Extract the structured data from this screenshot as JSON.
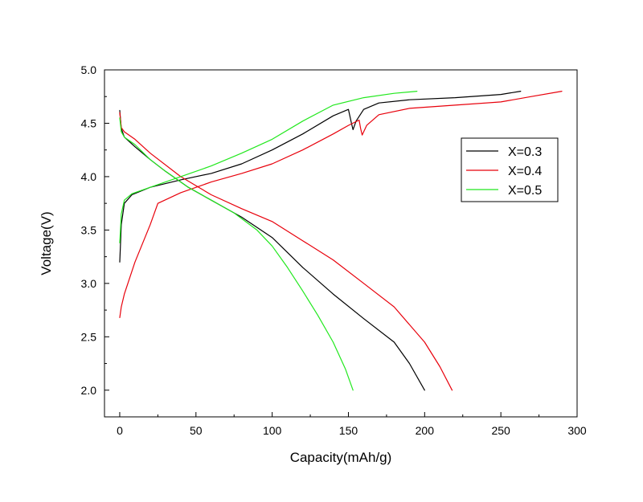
{
  "chart_data": {
    "type": "line",
    "title": "",
    "xlabel": "Capacity(mAh/g)",
    "ylabel": "Voltage(V)",
    "xlim": [
      -10,
      300
    ],
    "ylim": [
      1.75,
      5.0
    ],
    "x_ticks": [
      0,
      50,
      100,
      150,
      200,
      250,
      300
    ],
    "y_ticks": [
      2.0,
      2.5,
      3.0,
      3.5,
      4.0,
      4.5,
      5.0
    ],
    "x_tick_labels": [
      "0",
      "50",
      "100",
      "150",
      "200",
      "250",
      "300"
    ],
    "y_tick_labels": [
      "2.0",
      "2.5",
      "3.0",
      "3.5",
      "4.0",
      "4.5",
      "5.0"
    ],
    "grid": false,
    "legend_position": "right",
    "series": [
      {
        "name": "X=0.3",
        "color": "#000000",
        "charge": [
          [
            0,
            3.2
          ],
          [
            1,
            3.55
          ],
          [
            3,
            3.75
          ],
          [
            8,
            3.83
          ],
          [
            20,
            3.9
          ],
          [
            40,
            3.97
          ],
          [
            60,
            4.03
          ],
          [
            80,
            4.12
          ],
          [
            100,
            4.25
          ],
          [
            120,
            4.4
          ],
          [
            140,
            4.57
          ],
          [
            150,
            4.63
          ],
          [
            152,
            4.5
          ],
          [
            153,
            4.44
          ],
          [
            155,
            4.52
          ],
          [
            160,
            4.63
          ],
          [
            170,
            4.69
          ],
          [
            190,
            4.72
          ],
          [
            220,
            4.74
          ],
          [
            250,
            4.77
          ],
          [
            263,
            4.8
          ]
        ],
        "discharge": [
          [
            0,
            4.62
          ],
          [
            1,
            4.45
          ],
          [
            3,
            4.37
          ],
          [
            10,
            4.28
          ],
          [
            20,
            4.16
          ],
          [
            30,
            4.05
          ],
          [
            45,
            3.9
          ],
          [
            60,
            3.78
          ],
          [
            80,
            3.62
          ],
          [
            100,
            3.43
          ],
          [
            120,
            3.15
          ],
          [
            140,
            2.9
          ],
          [
            160,
            2.67
          ],
          [
            180,
            2.45
          ],
          [
            190,
            2.25
          ],
          [
            200,
            2.0
          ]
        ]
      },
      {
        "name": "X=0.4",
        "color": "#e8000b",
        "charge": [
          [
            0,
            2.68
          ],
          [
            1,
            2.78
          ],
          [
            3,
            2.9
          ],
          [
            10,
            3.2
          ],
          [
            20,
            3.55
          ],
          [
            25,
            3.75
          ],
          [
            40,
            3.85
          ],
          [
            60,
            3.95
          ],
          [
            80,
            4.03
          ],
          [
            100,
            4.12
          ],
          [
            120,
            4.25
          ],
          [
            140,
            4.4
          ],
          [
            150,
            4.48
          ],
          [
            157,
            4.53
          ],
          [
            158,
            4.45
          ],
          [
            159,
            4.39
          ],
          [
            162,
            4.48
          ],
          [
            170,
            4.58
          ],
          [
            190,
            4.64
          ],
          [
            220,
            4.67
          ],
          [
            250,
            4.7
          ],
          [
            270,
            4.75
          ],
          [
            290,
            4.8
          ]
        ],
        "discharge": [
          [
            0,
            4.6
          ],
          [
            1,
            4.46
          ],
          [
            3,
            4.42
          ],
          [
            10,
            4.35
          ],
          [
            20,
            4.22
          ],
          [
            40,
            4.0
          ],
          [
            60,
            3.83
          ],
          [
            80,
            3.7
          ],
          [
            100,
            3.58
          ],
          [
            120,
            3.4
          ],
          [
            140,
            3.22
          ],
          [
            160,
            3.0
          ],
          [
            180,
            2.78
          ],
          [
            200,
            2.45
          ],
          [
            210,
            2.22
          ],
          [
            218,
            2.0
          ]
        ]
      },
      {
        "name": "X=0.5",
        "color": "#22e81e",
        "charge": [
          [
            0,
            3.38
          ],
          [
            1,
            3.65
          ],
          [
            3,
            3.78
          ],
          [
            8,
            3.84
          ],
          [
            20,
            3.9
          ],
          [
            40,
            4.0
          ],
          [
            60,
            4.1
          ],
          [
            80,
            4.22
          ],
          [
            100,
            4.35
          ],
          [
            120,
            4.52
          ],
          [
            140,
            4.67
          ],
          [
            160,
            4.74
          ],
          [
            180,
            4.78
          ],
          [
            195,
            4.8
          ]
        ],
        "discharge": [
          [
            0,
            4.55
          ],
          [
            1,
            4.42
          ],
          [
            3,
            4.37
          ],
          [
            10,
            4.3
          ],
          [
            20,
            4.16
          ],
          [
            30,
            4.05
          ],
          [
            45,
            3.9
          ],
          [
            60,
            3.78
          ],
          [
            75,
            3.66
          ],
          [
            90,
            3.5
          ],
          [
            100,
            3.35
          ],
          [
            110,
            3.15
          ],
          [
            120,
            2.93
          ],
          [
            130,
            2.7
          ],
          [
            140,
            2.45
          ],
          [
            148,
            2.2
          ],
          [
            153,
            2.0
          ]
        ]
      }
    ]
  }
}
